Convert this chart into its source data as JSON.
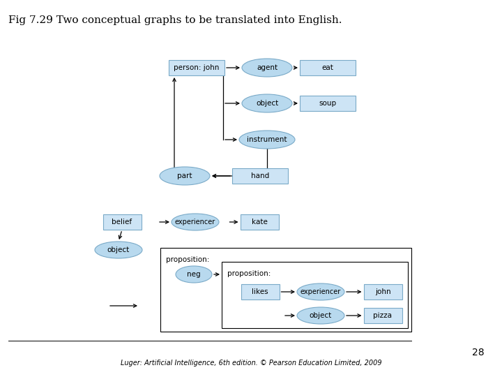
{
  "title": "Fig 7.29 Two conceptual graphs to be translated into English.",
  "title_fontsize": 11,
  "footer": "Luger: Artificial Intelligence, 6th edition. © Pearson Education Limited, 2009",
  "page_number": "28",
  "bg": "#ffffff",
  "rect_fc": "#cde4f5",
  "rect_ec": "#7aaac8",
  "ell_fc": "#b8d9ee",
  "ell_ec": "#7aaac8",
  "note_color": "#444444"
}
